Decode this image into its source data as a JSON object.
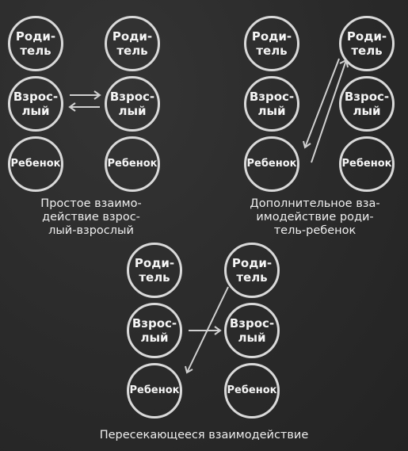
{
  "nodes": {
    "parent": "Роди-\nтель",
    "adult": "Взрос-\nлый",
    "child": "Ребенок"
  },
  "captions": {
    "simple": "Простое взаимо-\nдействие взрос-\nлый-взрослый",
    "complementary": "Дополнительное вза-\nимодействие роди-\nтель-ребенок",
    "crossed": "Пересекающееся взаимодействие"
  }
}
